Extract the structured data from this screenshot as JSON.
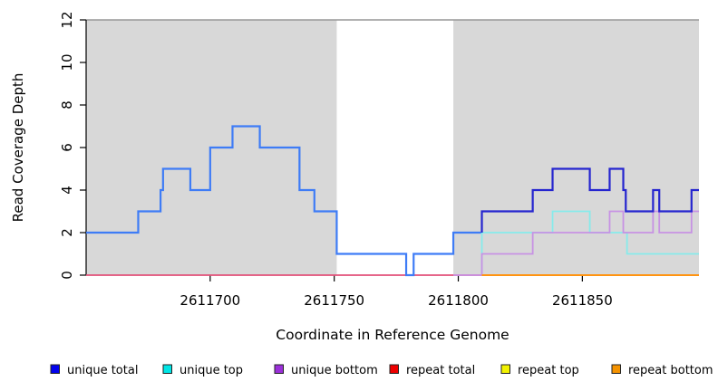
{
  "figure": {
    "xlabel": "Coordinate in Reference Genome",
    "ylabel": "Read Coverage Depth"
  },
  "chart_data": {
    "type": "line",
    "subtype": "step-coverage-plot",
    "title": "",
    "xlabel": "Coordinate in Reference Genome",
    "ylabel": "Read Coverage Depth",
    "xlim": [
      2611650,
      2611897
    ],
    "ylim": [
      0,
      12
    ],
    "x_ticks": [
      2611700,
      2611750,
      2611800,
      2611850
    ],
    "y_ticks": [
      0,
      2,
      4,
      6,
      8,
      10,
      12
    ],
    "grid": false,
    "background_color": "#ffffff",
    "shaded_region_color": "#d8d8d8",
    "top_border_color": "#979797",
    "shaded_regions": [
      {
        "x0": 2611650,
        "x1": 2611751
      },
      {
        "x0": 2611798,
        "x1": 2611897
      }
    ],
    "series": [
      {
        "name": "repeat total baseline",
        "color": "#e25079",
        "width": 1.8,
        "start": null,
        "points": [
          [
            2611650,
            0
          ]
        ],
        "end": 2611809.5
      },
      {
        "name": "total coverage",
        "color": "#3e7cf6",
        "width": 2.2,
        "start": null,
        "points": [
          [
            2611650,
            2
          ],
          [
            2611671,
            3
          ],
          [
            2611680,
            4
          ],
          [
            2611681,
            5
          ],
          [
            2611692,
            4
          ],
          [
            2611700,
            6
          ],
          [
            2611709,
            7
          ],
          [
            2611720,
            6
          ],
          [
            2611736,
            4
          ],
          [
            2611742,
            3
          ],
          [
            2611751,
            1
          ],
          [
            2611779,
            0
          ],
          [
            2611782,
            1
          ],
          [
            2611798,
            2
          ]
        ],
        "end": 2611809.5
      },
      {
        "name": "unique top",
        "color": "#86ebeb",
        "width": 1.8,
        "start": 0,
        "points": [
          [
            2611809.5,
            2
          ],
          [
            2611838,
            3
          ],
          [
            2611853,
            2
          ],
          [
            2611868,
            1
          ]
        ],
        "end": 2611897
      },
      {
        "name": "unique bottom",
        "color": "#c792e4",
        "width": 1.8,
        "start": null,
        "points": [
          [
            2611798,
            0
          ],
          [
            2611809.5,
            1
          ],
          [
            2611830,
            2
          ],
          [
            2611861,
            3
          ],
          [
            2611866.5,
            2
          ],
          [
            2611878.5,
            3
          ],
          [
            2611881,
            2
          ],
          [
            2611894,
            3
          ]
        ],
        "end": 2611897
      },
      {
        "name": "unique total",
        "color": "#2525cf",
        "width": 2.2,
        "start": 2,
        "points": [
          [
            2611809.5,
            3
          ],
          [
            2611830,
            4
          ],
          [
            2611838,
            5
          ],
          [
            2611853,
            4
          ],
          [
            2611861,
            5
          ],
          [
            2611866.5,
            4
          ],
          [
            2611867.5,
            3
          ],
          [
            2611878.5,
            4
          ],
          [
            2611881,
            3
          ],
          [
            2611894,
            4
          ]
        ],
        "end": 2611897
      },
      {
        "name": "repeat bottom",
        "color": "#ff9412",
        "width": 2,
        "start": null,
        "points": [
          [
            2611809.5,
            0
          ]
        ],
        "end": 2611897
      }
    ],
    "legend": [
      {
        "label": "unique total",
        "color": "#0202ee"
      },
      {
        "label": "unique top",
        "color": "#00e6e6"
      },
      {
        "label": "unique bottom",
        "color": "#9b30d9"
      },
      {
        "label": "repeat total",
        "color": "#ee0000"
      },
      {
        "label": "repeat top",
        "color": "#f2f200"
      },
      {
        "label": "repeat bottom",
        "color": "#f59300"
      }
    ],
    "legend_position": "bottom"
  }
}
